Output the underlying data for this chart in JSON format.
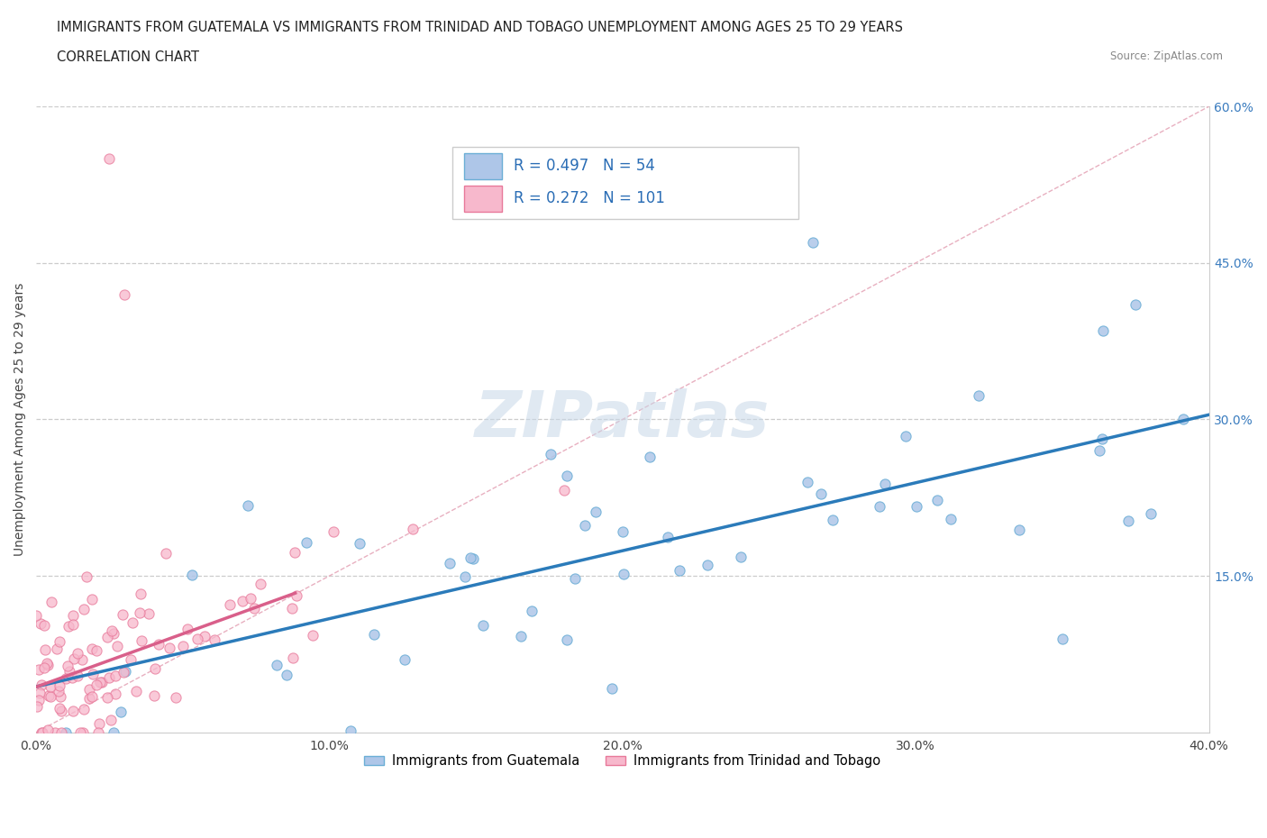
{
  "title_line1": "IMMIGRANTS FROM GUATEMALA VS IMMIGRANTS FROM TRINIDAD AND TOBAGO UNEMPLOYMENT AMONG AGES 25 TO 29 YEARS",
  "title_line2": "CORRELATION CHART",
  "source_text": "Source: ZipAtlas.com",
  "ylabel": "Unemployment Among Ages 25 to 29 years",
  "xlim": [
    0.0,
    0.4
  ],
  "ylim": [
    0.0,
    0.6
  ],
  "xtick_labels": [
    "0.0%",
    "10.0%",
    "20.0%",
    "30.0%",
    "40.0%"
  ],
  "xtick_vals": [
    0.0,
    0.1,
    0.2,
    0.3,
    0.4
  ],
  "ytick_labels": [
    "15.0%",
    "30.0%",
    "45.0%",
    "60.0%"
  ],
  "ytick_vals": [
    0.15,
    0.3,
    0.45,
    0.6
  ],
  "color_guatemala": "#aec6e8",
  "color_trinidad": "#f7b8cc",
  "marker_edge_guatemala": "#6baed6",
  "marker_edge_trinidad": "#e8799a",
  "line_color_guatemala": "#2b7bba",
  "line_color_trinidad": "#d95f8a",
  "diag_line_color": "#e8b0c0",
  "R_guatemala": 0.497,
  "N_guatemala": 54,
  "R_trinidad": 0.272,
  "N_trinidad": 101,
  "legend_label_guatemala": "Immigrants from Guatemala",
  "legend_label_trinidad": "Immigrants from Trinidad and Tobago",
  "watermark": "ZIPatlas",
  "title_fontsize": 10.5,
  "axis_label_fontsize": 10,
  "tick_fontsize": 10,
  "legend_fontsize": 12
}
